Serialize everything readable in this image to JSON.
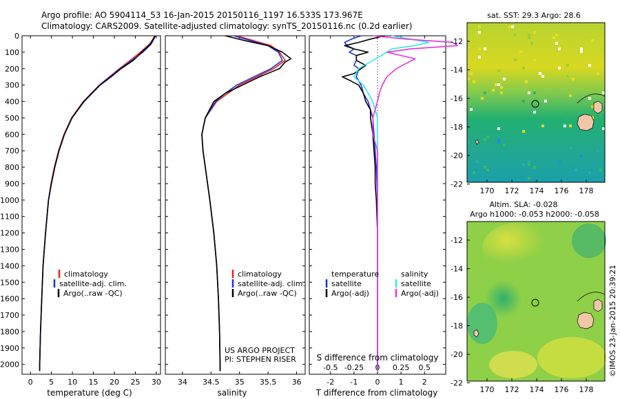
{
  "header": {
    "line1": "Argo profile: AO 5904114_53 16-Jan-2015 20150116_1197 16.533S 173.967E",
    "line2": "Climatology: CARS2009. Satellite-adjusted climatology: synTS_20150116.nc (0.2d earlier)"
  },
  "colors": {
    "climatology": "#e8201c",
    "satellite": "#1a2fe0",
    "argo": "#000000",
    "satellite_s": "#30e8e8",
    "argo_adj_s": "#e830e0"
  },
  "depth_ticks": [
    "0",
    "100",
    "200",
    "300",
    "400",
    "500",
    "600",
    "700",
    "800",
    "900",
    "1000",
    "1100",
    "1200",
    "1300",
    "1400",
    "1500",
    "1600",
    "1700",
    "1800",
    "1900",
    "2000"
  ],
  "chart_data": [
    {
      "type": "line",
      "name": "temperature-panel",
      "xlabel": "temperature (deg C)",
      "ylabel": "",
      "xlim": [
        -2,
        31
      ],
      "ylim": [
        2060,
        0
      ],
      "xticks": [
        "0",
        "5",
        "10",
        "15",
        "20",
        "25",
        "30"
      ],
      "legend": [
        "climatology",
        "satellite-adj. clim.",
        "Argo(..raw -QC)"
      ],
      "series": [
        {
          "name": "climatology",
          "depth": [
            0,
            20,
            50,
            100,
            150,
            200,
            250,
            300,
            400,
            500,
            600,
            700,
            800,
            900,
            1000,
            1200,
            1400,
            1600,
            1800,
            2000,
            2040
          ],
          "values": [
            29.6,
            29.2,
            28.4,
            26.2,
            23.8,
            21.2,
            18.8,
            16.4,
            12.6,
            9.8,
            8.0,
            6.7,
            5.7,
            4.9,
            4.3,
            3.6,
            3.0,
            2.7,
            2.4,
            2.2,
            2.2
          ]
        },
        {
          "name": "satellite-adj. clim.",
          "depth": [
            0,
            20,
            50,
            100,
            150,
            200,
            250,
            300,
            400,
            500,
            600,
            700,
            800,
            900,
            1000,
            1200,
            1400,
            1600,
            1800,
            2000,
            2040
          ],
          "values": [
            29.8,
            29.4,
            28.8,
            26.8,
            24.2,
            21.4,
            18.9,
            16.5,
            12.7,
            9.9,
            8.1,
            6.8,
            5.8,
            5.0,
            4.3,
            3.6,
            3.0,
            2.7,
            2.4,
            2.2,
            2.2
          ]
        },
        {
          "name": "Argo(..raw -QC)",
          "depth": [
            0,
            20,
            50,
            100,
            150,
            200,
            250,
            300,
            400,
            500,
            600,
            700,
            800,
            900,
            1000,
            1200,
            1400,
            1600,
            1800,
            2000,
            2040
          ],
          "values": [
            29.7,
            29.3,
            28.6,
            26.5,
            24.5,
            21.6,
            19.2,
            16.6,
            12.8,
            9.9,
            8.1,
            6.8,
            5.8,
            5.0,
            4.3,
            3.6,
            3.0,
            2.7,
            2.4,
            2.2,
            2.2
          ]
        }
      ]
    },
    {
      "type": "line",
      "name": "salinity-panel",
      "xlabel": "salinity",
      "ylabel": "",
      "xlim": [
        33.7,
        36.15
      ],
      "ylim": [
        2060,
        0
      ],
      "xticks": [
        "34",
        "34.5",
        "35",
        "35.5",
        "36"
      ],
      "legend": [
        "climatology",
        "satellite-adj. clim.",
        "Argo(..raw -QC)"
      ],
      "series": [
        {
          "name": "climatology",
          "depth": [
            0,
            30,
            60,
            100,
            150,
            200,
            250,
            300,
            350,
            400,
            500,
            600,
            700,
            800,
            900,
            1000,
            1200,
            1400,
            1600,
            1800,
            2000,
            2040
          ],
          "values": [
            34.95,
            35.25,
            35.55,
            35.7,
            35.8,
            35.6,
            35.3,
            35.0,
            34.8,
            34.6,
            34.4,
            34.34,
            34.36,
            34.4,
            34.44,
            34.48,
            34.55,
            34.6,
            34.63,
            34.65,
            34.66,
            34.66
          ]
        },
        {
          "name": "satellite-adj. clim.",
          "depth": [
            0,
            30,
            60,
            100,
            150,
            200,
            250,
            300,
            350,
            400,
            500,
            600,
            700,
            800,
            900,
            1000,
            1200,
            1400,
            1600,
            1800,
            2000,
            2040
          ],
          "values": [
            34.9,
            35.2,
            35.5,
            35.68,
            35.75,
            35.55,
            35.25,
            34.95,
            34.75,
            34.58,
            34.4,
            34.34,
            34.36,
            34.4,
            34.44,
            34.48,
            34.55,
            34.6,
            34.63,
            34.65,
            34.66,
            34.66
          ]
        },
        {
          "name": "Argo(..raw -QC)",
          "depth": [
            0,
            30,
            60,
            100,
            140,
            160,
            200,
            250,
            300,
            350,
            400,
            500,
            600,
            700,
            800,
            900,
            1000,
            1200,
            1400,
            1600,
            1800,
            2000,
            2040
          ],
          "values": [
            34.75,
            35.1,
            35.5,
            35.75,
            35.9,
            35.8,
            35.7,
            35.35,
            35.05,
            34.75,
            34.55,
            34.4,
            34.34,
            34.36,
            34.4,
            34.44,
            34.48,
            34.55,
            34.6,
            34.63,
            34.65,
            34.66,
            34.66
          ]
        }
      ]
    },
    {
      "type": "line",
      "name": "difference-panel",
      "xlabel": "T difference from climatology",
      "xlabel2": "S difference from climatology",
      "xlim": [
        -2.9,
        2.9
      ],
      "ylim": [
        2060,
        0
      ],
      "xticks": [
        "-2",
        "-1",
        "0",
        "1",
        "2"
      ],
      "xticks_s": [
        "-0.5",
        "-0.25",
        "0",
        "0.25",
        "0.5"
      ],
      "legend_headers": [
        "temperature",
        "salinity"
      ],
      "legend": [
        "satellite",
        "Argo(-adj)",
        "satellite",
        "Argo(-adj)"
      ],
      "series": [
        {
          "name": "temperature satellite",
          "depth": [
            0,
            20,
            40,
            60,
            80,
            100,
            120,
            150,
            180,
            200,
            250,
            300,
            350,
            400,
            500,
            600,
            700,
            800,
            1000,
            1200,
            1500,
            2040
          ],
          "values": [
            -0.7,
            -1.1,
            -1.4,
            -1.3,
            -1.0,
            -1.2,
            -0.9,
            -0.9,
            -1.0,
            -0.8,
            -0.9,
            -0.7,
            -0.6,
            -0.4,
            -0.2,
            -0.15,
            -0.1,
            -0.05,
            0,
            0,
            0,
            0
          ]
        },
        {
          "name": "temperature Argo(-adj)",
          "depth": [
            0,
            20,
            40,
            60,
            80,
            100,
            120,
            150,
            180,
            200,
            230,
            250,
            270,
            300,
            350,
            400,
            450,
            500,
            600,
            700,
            800,
            900,
            1000,
            1200,
            1500,
            2040
          ],
          "values": [
            0.3,
            -0.3,
            -0.8,
            -1.4,
            -1.0,
            -0.4,
            -0.9,
            -0.9,
            -0.5,
            -0.7,
            -1.0,
            -1.5,
            -1.2,
            -0.8,
            -0.6,
            -0.5,
            -0.3,
            -0.3,
            -0.2,
            -0.15,
            -0.1,
            -0.1,
            -0.05,
            0,
            0,
            0
          ]
        },
        {
          "name": "salinity satellite",
          "depth": [
            0,
            20,
            40,
            60,
            80,
            100,
            150,
            200,
            250,
            300,
            400,
            500,
            700,
            900,
            1200,
            1500,
            2040
          ],
          "values": [
            0.15,
            0.35,
            0.55,
            0.4,
            0.15,
            0.1,
            -0.05,
            -0.2,
            -0.25,
            -0.15,
            -0.05,
            0,
            0,
            0,
            0,
            0,
            0
          ]
        },
        {
          "name": "salinity Argo(-adj)",
          "depth": [
            0,
            20,
            40,
            60,
            80,
            100,
            140,
            170,
            200,
            250,
            300,
            350,
            400,
            500,
            600,
            700,
            900,
            1200,
            1500,
            2040
          ],
          "values": [
            -0.05,
            0.3,
            0.8,
            0.85,
            0.35,
            0.1,
            0.4,
            0.3,
            0.2,
            0.1,
            0.05,
            0.02,
            0,
            -0.05,
            -0.05,
            0,
            0,
            0,
            0,
            0
          ]
        }
      ]
    }
  ],
  "credits": {
    "project": "US ARGO PROJECT",
    "pi": "PI: STEPHEN RISER"
  },
  "maps": {
    "sst": {
      "title": "sat. SST: 29.3 Argo: 28.6",
      "yticks": [
        "-12",
        "-14",
        "-16",
        "-18",
        "-20",
        "-22"
      ],
      "xticks": [
        "170",
        "172",
        "174",
        "176",
        "178"
      ]
    },
    "sla": {
      "title1": "Altim. SLA: -0.028",
      "title2": "Argo h1000: -0.053 h2000: -0.058",
      "yticks": [
        "-12",
        "-14",
        "-16",
        "-18",
        "-20",
        "-22"
      ],
      "xticks": [
        "170",
        "172",
        "174",
        "176",
        "178"
      ]
    }
  },
  "watermark": "©IMOS 23-Jan-2015 20:39:21"
}
